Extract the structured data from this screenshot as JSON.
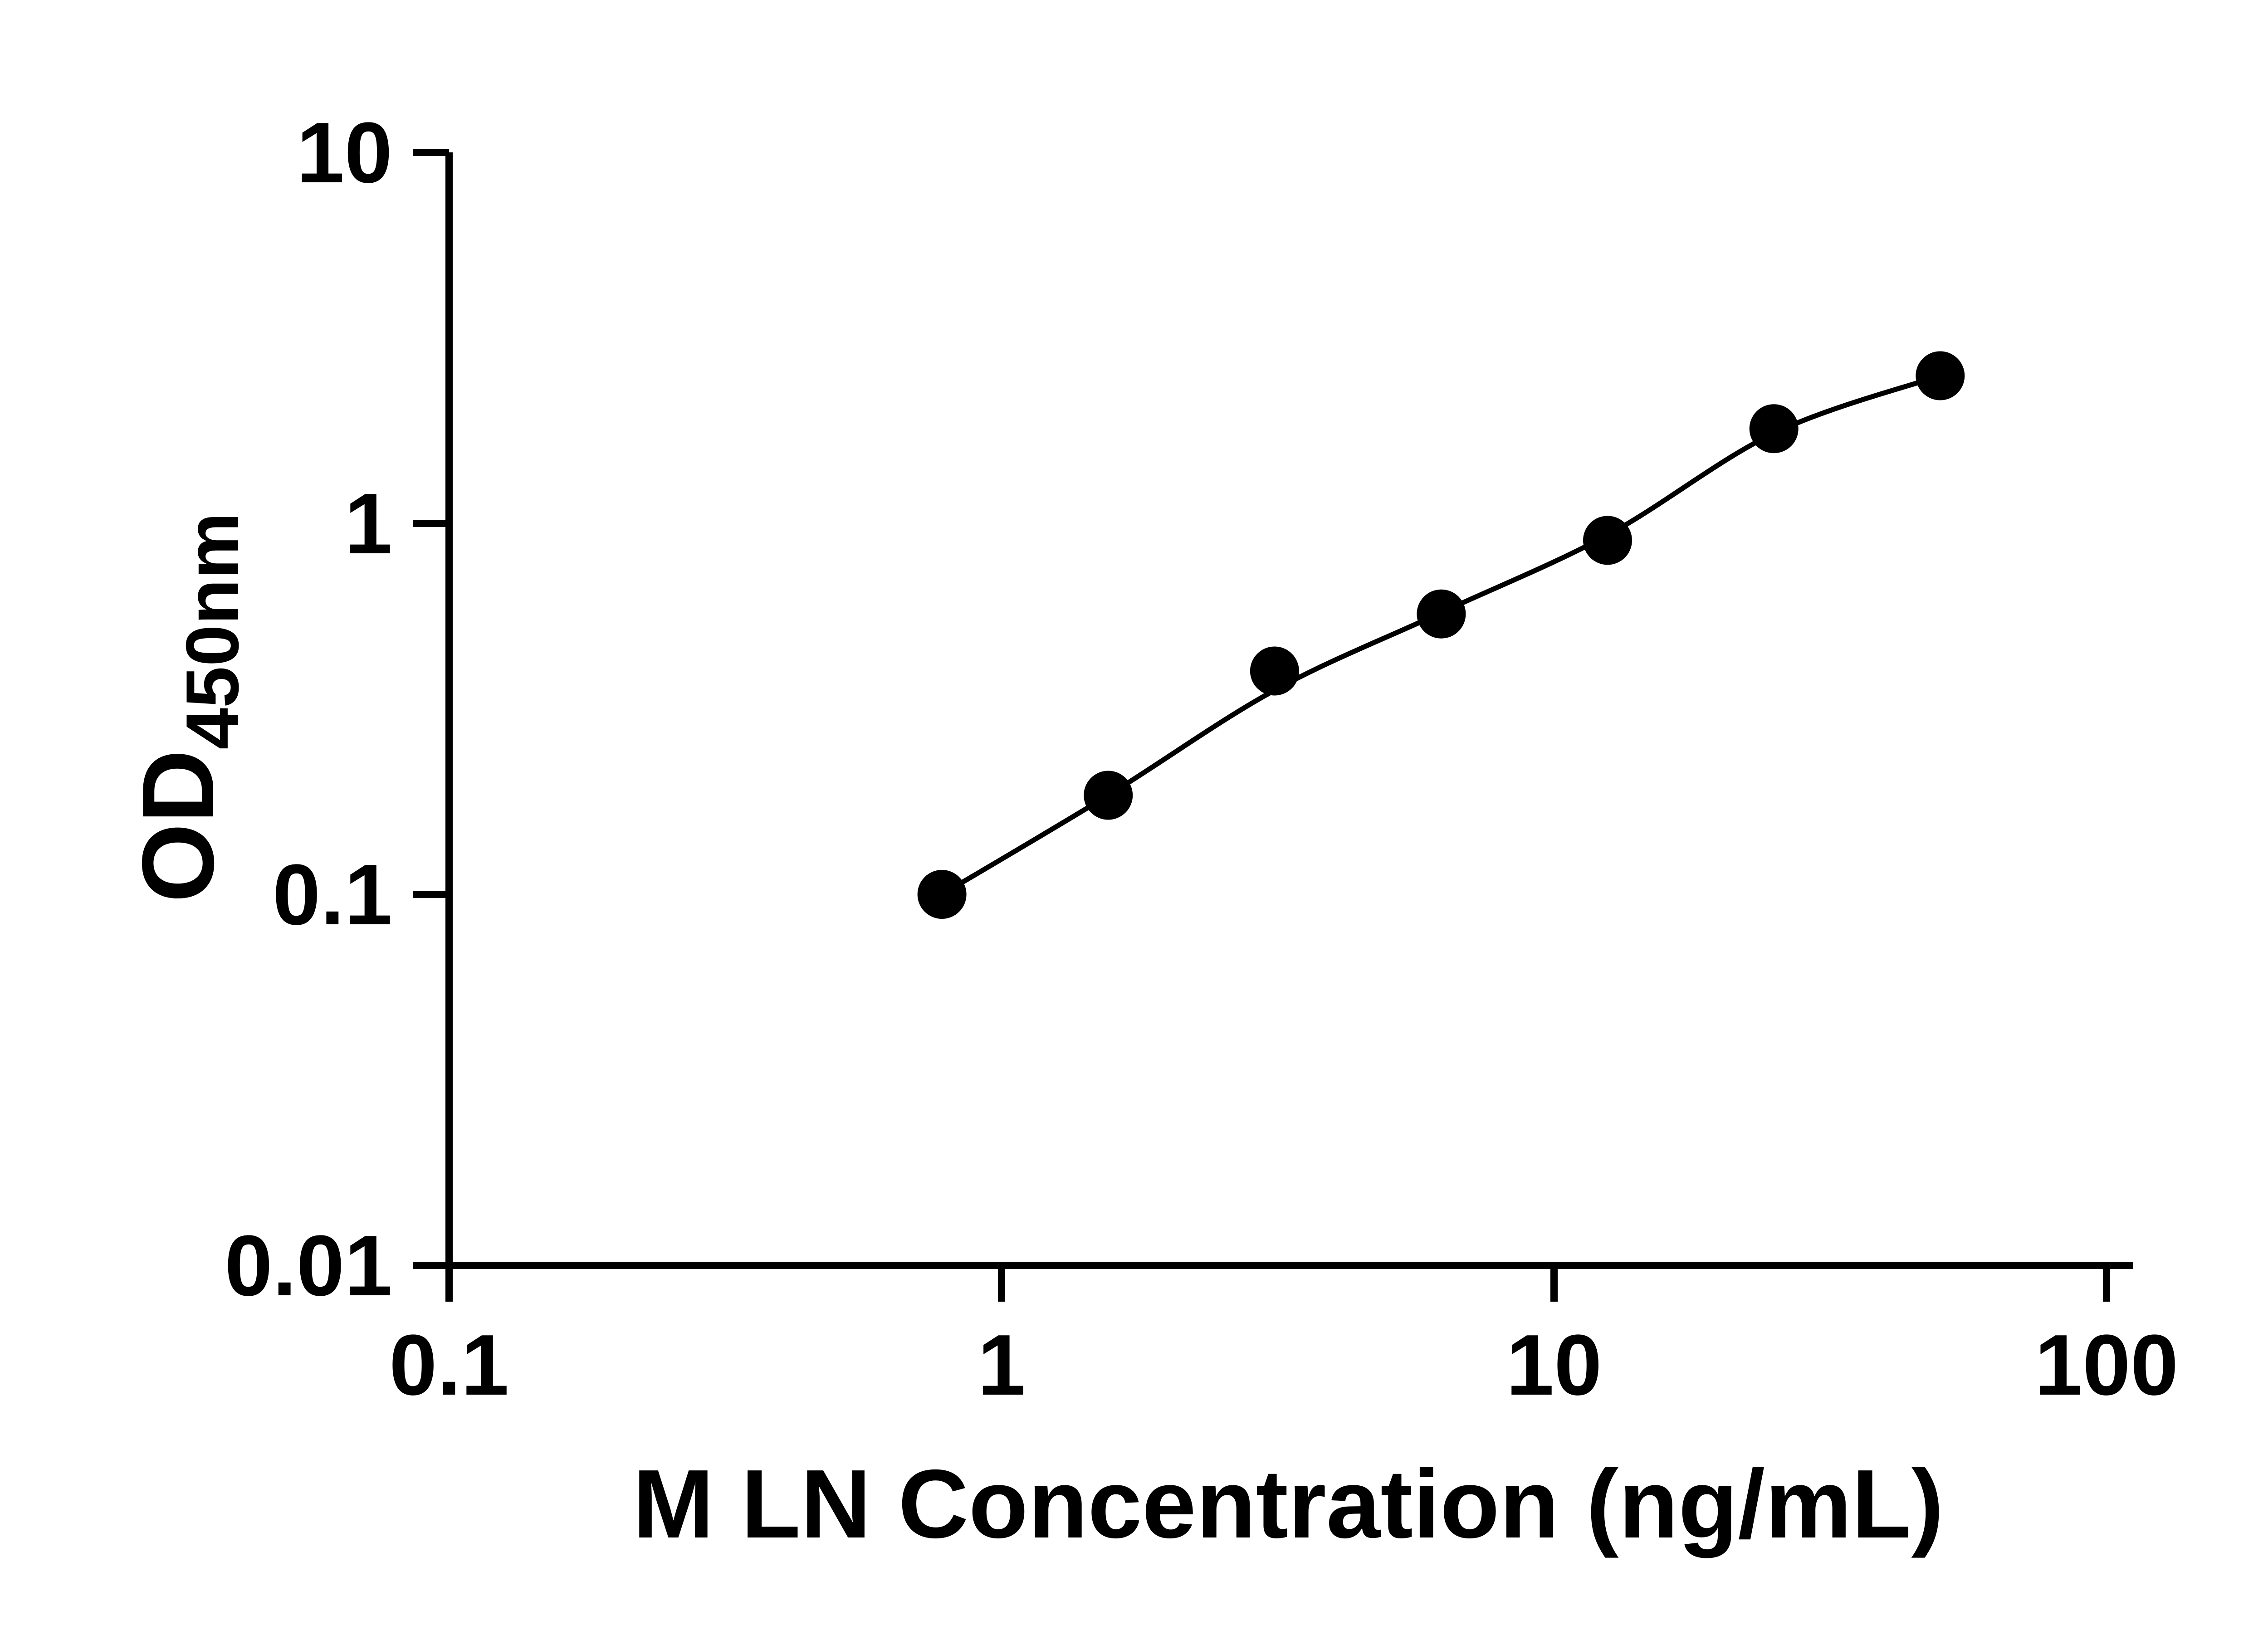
{
  "chart_data": {
    "type": "scatter",
    "title": "",
    "xlabel": "M LN Concentration (ng/mL)",
    "ylabel_main": "OD",
    "ylabel_sub": "450nm",
    "x_scale": "log",
    "y_scale": "log",
    "xlim": [
      0.1,
      100
    ],
    "ylim": [
      0.01,
      10
    ],
    "x_ticks": [
      0.1,
      1,
      10,
      100
    ],
    "x_tick_labels": [
      "0.1",
      "1",
      "10",
      "100"
    ],
    "y_ticks": [
      0.01,
      0.1,
      1,
      10
    ],
    "y_tick_labels": [
      "0.01",
      "0.1",
      "1",
      "10"
    ],
    "grid": "off",
    "legend": "none",
    "points": [
      {
        "x": 0.78,
        "y": 0.1
      },
      {
        "x": 1.56,
        "y": 0.185
      },
      {
        "x": 3.12,
        "y": 0.4
      },
      {
        "x": 6.25,
        "y": 0.57
      },
      {
        "x": 12.5,
        "y": 0.9
      },
      {
        "x": 25,
        "y": 1.8
      },
      {
        "x": 50,
        "y": 2.5
      }
    ],
    "curve": [
      {
        "x": 0.78,
        "y": 0.1
      },
      {
        "x": 1.56,
        "y": 0.185
      },
      {
        "x": 3.12,
        "y": 0.355
      },
      {
        "x": 6.25,
        "y": 0.575
      },
      {
        "x": 12.5,
        "y": 0.93
      },
      {
        "x": 25,
        "y": 1.75
      },
      {
        "x": 50,
        "y": 2.5
      }
    ],
    "colors": {
      "axis": "#000000",
      "line": "#000000",
      "point": "#000000",
      "background": "#ffffff"
    }
  }
}
